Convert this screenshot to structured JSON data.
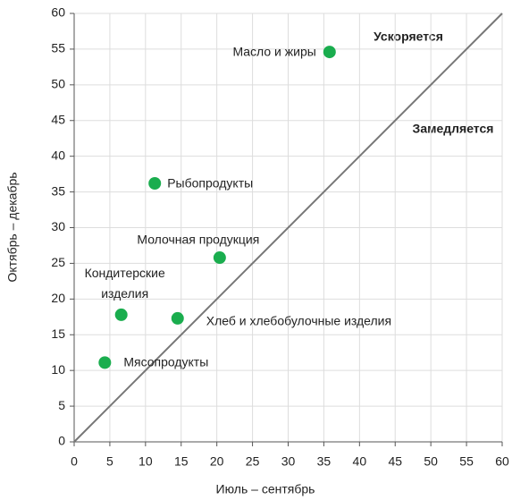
{
  "chart_data": {
    "type": "scatter",
    "x_label": "Июль – сентябрь",
    "y_label": "Октябрь – декабрь",
    "series": [
      {
        "name": null,
        "color": "#1aad4e",
        "labels": [
          "Масло и жиры",
          "Рыбопродукты",
          "Молочная продукция",
          "Кондитерские изделия",
          "Хлеб и хлебобулочные изделия",
          "Мясопродукты"
        ],
        "x": [
          35.8,
          11.3,
          20.4,
          6.6,
          14.5,
          4.3
        ],
        "values": [
          54.6,
          36.2,
          25.8,
          17.8,
          17.3,
          11.1
        ]
      }
    ],
    "annotations": [
      "Ускоряется",
      "Замедляется"
    ],
    "xlim": [
      0,
      60
    ],
    "ylim": [
      0,
      60
    ],
    "xticks": [
      0,
      5,
      10,
      15,
      20,
      25,
      30,
      35,
      40,
      45,
      50,
      55,
      60
    ],
    "yticks": [
      0,
      5,
      10,
      15,
      20,
      25,
      30,
      35,
      40,
      45,
      50,
      55,
      60
    ],
    "grid": true,
    "reference_line": "y=x"
  }
}
